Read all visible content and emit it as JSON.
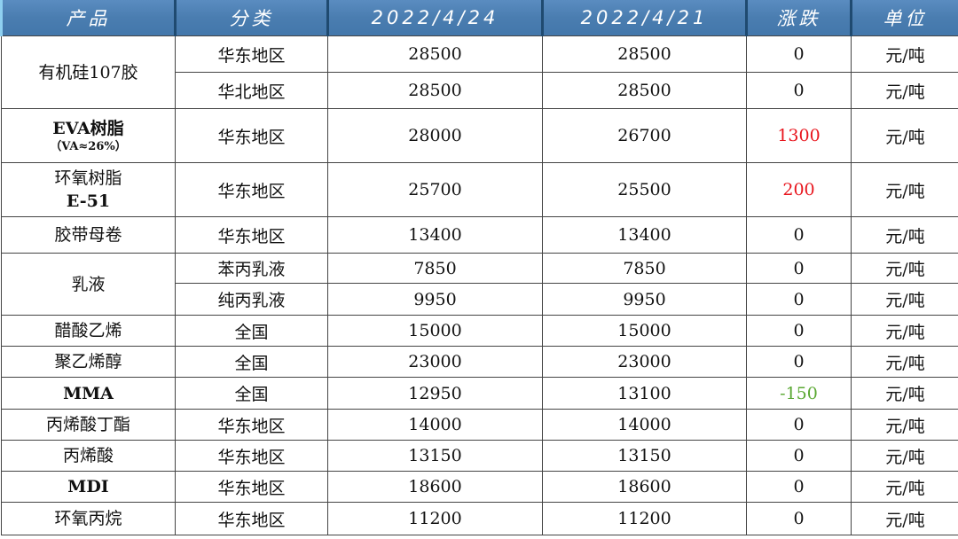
{
  "headers": {
    "product": "产品",
    "category": "分类",
    "date1": "2022/4/24",
    "date2": "2022/4/21",
    "change": "涨跌",
    "unit": "单位"
  },
  "colors": {
    "header_bg": "#4a7db0",
    "up": "#e8141c",
    "down": "#5aa832"
  },
  "rows": [
    {
      "product": "有机硅107胶",
      "category": "华东地区",
      "p1": "28500",
      "p2": "28500",
      "change": "0",
      "unit": "元/吨"
    },
    {
      "category": "华北地区",
      "p1": "28500",
      "p2": "28500",
      "change": "0",
      "unit": "元/吨"
    },
    {
      "product": "EVA树脂",
      "product_sub": "（VA≈26%）",
      "category": "华东地区",
      "p1": "28000",
      "p2": "26700",
      "change": "1300",
      "unit": "元/吨"
    },
    {
      "product": "环氧树脂",
      "product_sub": "E-51",
      "category": "华东地区",
      "p1": "25700",
      "p2": "25500",
      "change": "200",
      "unit": "元/吨"
    },
    {
      "product": "胶带母卷",
      "category": "华东地区",
      "p1": "13400",
      "p2": "13400",
      "change": "0",
      "unit": "元/吨"
    },
    {
      "product": "乳液",
      "category": "苯丙乳液",
      "p1": "7850",
      "p2": "7850",
      "change": "0",
      "unit": "元/吨"
    },
    {
      "category": "纯丙乳液",
      "p1": "9950",
      "p2": "9950",
      "change": "0",
      "unit": "元/吨"
    },
    {
      "product": "醋酸乙烯",
      "category": "全国",
      "p1": "15000",
      "p2": "15000",
      "change": "0",
      "unit": "元/吨"
    },
    {
      "product": "聚乙烯醇",
      "category": "全国",
      "p1": "23000",
      "p2": "23000",
      "change": "0",
      "unit": "元/吨"
    },
    {
      "product": "MMA",
      "category": "全国",
      "p1": "12950",
      "p2": "13100",
      "change": "-150",
      "unit": "元/吨"
    },
    {
      "product": "丙烯酸丁酯",
      "category": "华东地区",
      "p1": "14000",
      "p2": "14000",
      "change": "0",
      "unit": "元/吨"
    },
    {
      "product": "丙烯酸",
      "category": "华东地区",
      "p1": "13150",
      "p2": "13150",
      "change": "0",
      "unit": "元/吨"
    },
    {
      "product": "MDI",
      "category": "华东地区",
      "p1": "18600",
      "p2": "18600",
      "change": "0",
      "unit": "元/吨"
    },
    {
      "product": "环氧丙烷",
      "category": "华东地区",
      "p1": "11200",
      "p2": "11200",
      "change": "0",
      "unit": "元/吨"
    }
  ]
}
